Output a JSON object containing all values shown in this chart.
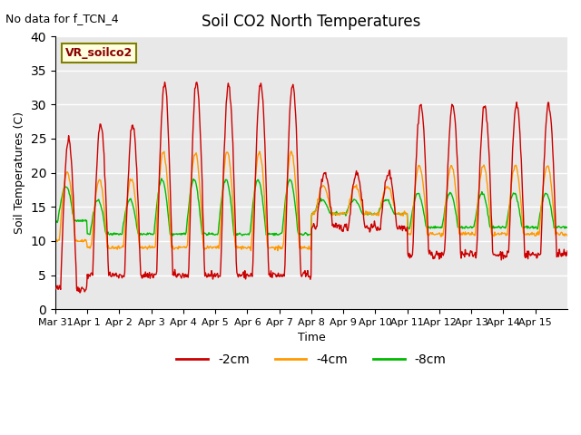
{
  "title": "Soil CO2 North Temperatures",
  "subtitle": "No data for f_TCN_4",
  "ylabel": "Soil Temperatures (C)",
  "xlabel": "Time",
  "legend_label": "VR_soilco2",
  "ylim": [
    0,
    40
  ],
  "bg_color": "#e8e8e8",
  "line_colors": {
    "2cm": "#cc0000",
    "4cm": "#ff9900",
    "8cm": "#00bb00"
  },
  "xtick_labels": [
    "Mar 31",
    "Apr 1",
    "Apr 2",
    "Apr 3",
    "Apr 4",
    "Apr 5",
    "Apr 6",
    "Apr 7",
    "Apr 8",
    "Apr 9",
    "Apr 10",
    "Apr 11",
    "Apr 12",
    "Apr 13",
    "Apr 14",
    "Apr 15"
  ],
  "xtick_positions": [
    0,
    1,
    2,
    3,
    4,
    5,
    6,
    7,
    8,
    9,
    10,
    11,
    12,
    13,
    14,
    15
  ],
  "n_days": 16,
  "legend_entries": [
    "-2cm",
    "-4cm",
    "-8cm"
  ]
}
